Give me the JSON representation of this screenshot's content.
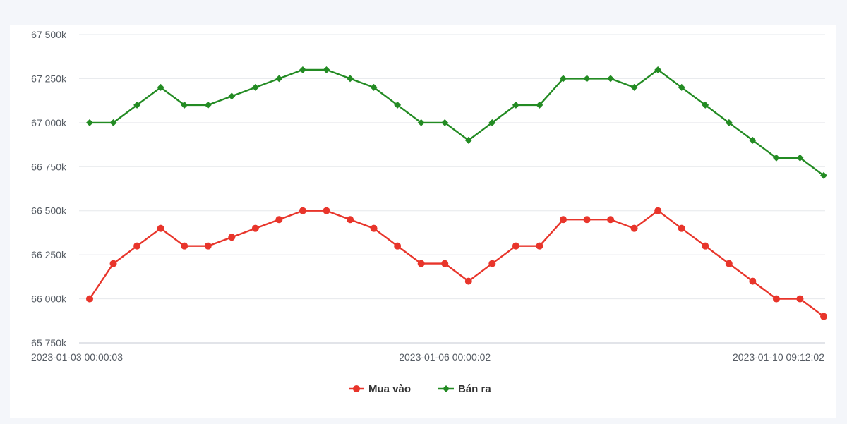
{
  "chart_data": {
    "type": "line",
    "title": "",
    "xlabel": "",
    "ylabel": "",
    "ylim": [
      65750,
      67500
    ],
    "y_ticks": [
      {
        "value": 65750,
        "label": "65 750k"
      },
      {
        "value": 66000,
        "label": "66 000k"
      },
      {
        "value": 66250,
        "label": "66 250k"
      },
      {
        "value": 66500,
        "label": "66 500k"
      },
      {
        "value": 66750,
        "label": "66 750k"
      },
      {
        "value": 67000,
        "label": "67 000k"
      },
      {
        "value": 67250,
        "label": "67 250k"
      },
      {
        "value": 67500,
        "label": "67 500k"
      }
    ],
    "x_ticks": [
      {
        "index": 0,
        "label": "2023-01-03 00:00:03"
      },
      {
        "index": 15,
        "label": "2023-01-06 00:00:02"
      },
      {
        "index": 32,
        "label": "2023-01-10 09:12:02"
      }
    ],
    "grid": true,
    "legend_position": "bottom-center",
    "series": [
      {
        "name": "Mua vào",
        "color": "#e8352b",
        "marker": "circle",
        "values": [
          66000,
          66200,
          66300,
          66400,
          66300,
          66300,
          66350,
          66400,
          66450,
          66500,
          66500,
          66450,
          66400,
          66300,
          66200,
          66200,
          66100,
          66200,
          66300,
          66300,
          66450,
          66450,
          66450,
          66400,
          66500,
          66400,
          66300,
          66200,
          66100,
          66000,
          66000,
          65900
        ]
      },
      {
        "name": "Bán ra",
        "color": "#238b23",
        "marker": "diamond",
        "values": [
          67000,
          67000,
          67100,
          67200,
          67100,
          67100,
          67150,
          67200,
          67250,
          67300,
          67300,
          67250,
          67200,
          67100,
          67000,
          67000,
          66900,
          67000,
          67100,
          67100,
          67250,
          67250,
          67250,
          67200,
          67300,
          67200,
          67100,
          67000,
          66900,
          66800,
          66800,
          66700
        ]
      }
    ]
  }
}
